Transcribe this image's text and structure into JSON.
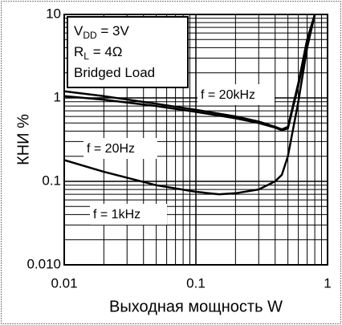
{
  "chart_data": {
    "type": "line",
    "ylabel": "КНИ %",
    "xlabel": "Выходная мощность W",
    "log_x": true,
    "log_y": true,
    "grid": true,
    "xlim": [
      0.01,
      1
    ],
    "ylim": [
      0.01,
      10
    ],
    "xticks": [
      0.01,
      0.1,
      1
    ],
    "yticks": [
      10,
      1,
      0.1,
      {
        "value": 0.01,
        "label": "0.010"
      }
    ],
    "xgrid": [
      0.02,
      0.03,
      0.04,
      0.05,
      0.06,
      0.07,
      0.08,
      0.09,
      0.2,
      0.3,
      0.4,
      0.5,
      0.6,
      0.7,
      0.8,
      0.9
    ],
    "ygrid": [
      0.02,
      0.03,
      0.04,
      0.05,
      0.06,
      0.07,
      0.08,
      0.09,
      0.2,
      0.3,
      0.4,
      0.5,
      0.6,
      0.7,
      0.8,
      0.9,
      2,
      3,
      4,
      5,
      6,
      7,
      8,
      9
    ],
    "annotation": [
      {
        "main": "V",
        "sub": "DD",
        "rest": " = 3V"
      },
      {
        "main": "R",
        "sub": "L",
        "rest": "  =  4Ω"
      },
      {
        "main": "Bridged Load"
      }
    ],
    "series": [
      {
        "name": "f = 20kHz",
        "color": "#000000",
        "x": [
          0.01,
          0.02,
          0.05,
          0.1,
          0.2,
          0.3,
          0.4,
          0.45,
          0.5,
          0.6,
          0.7,
          0.8
        ],
        "values": [
          1.2,
          1.05,
          0.85,
          0.72,
          0.6,
          0.52,
          0.45,
          0.42,
          0.45,
          1.5,
          5,
          10
        ]
      },
      {
        "name": "f = 20Hz",
        "color": "#000000",
        "x": [
          0.01,
          0.02,
          0.05,
          0.1,
          0.2,
          0.3,
          0.4,
          0.45,
          0.5,
          0.6,
          0.7,
          0.8
        ],
        "values": [
          1.05,
          0.95,
          0.8,
          0.68,
          0.57,
          0.5,
          0.44,
          0.41,
          0.43,
          1.4,
          4.5,
          10
        ]
      },
      {
        "name": "f = 1kHz",
        "color": "#000000",
        "x": [
          0.01,
          0.02,
          0.05,
          0.1,
          0.15,
          0.2,
          0.3,
          0.4,
          0.45,
          0.5,
          0.6,
          0.7,
          0.8
        ],
        "values": [
          0.18,
          0.13,
          0.09,
          0.075,
          0.07,
          0.072,
          0.08,
          0.1,
          0.12,
          0.2,
          0.9,
          4,
          10
        ]
      }
    ]
  }
}
